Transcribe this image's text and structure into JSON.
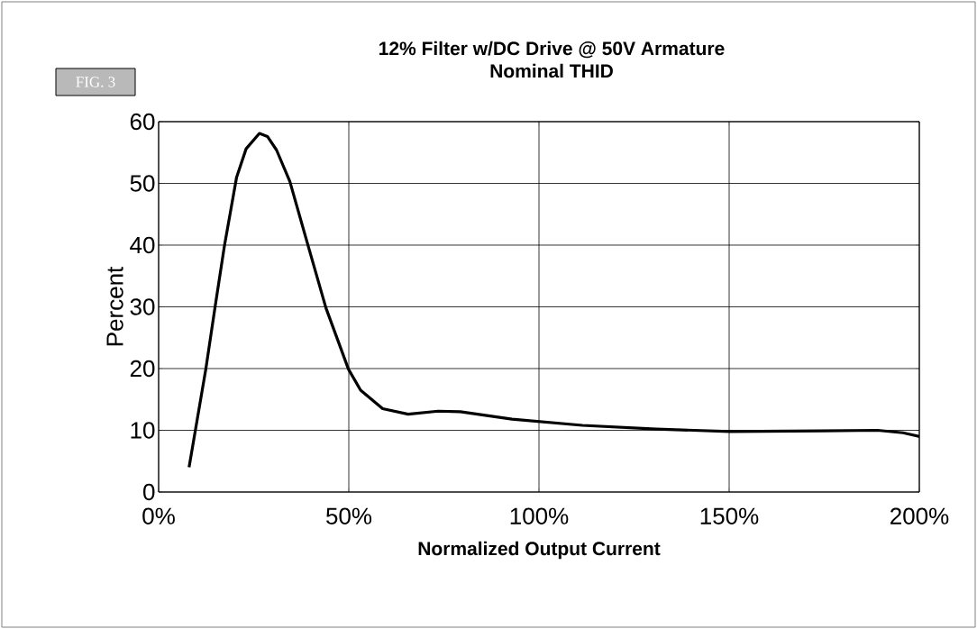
{
  "chart_data": {
    "type": "line",
    "title": "12% Filter w/DC Drive @ 50V Armature",
    "subtitle": "Nominal THID",
    "xlabel": "Normalized Output Current",
    "ylabel": "Percent",
    "annotations": [
      "FIG. 3"
    ],
    "series": [
      {
        "color": "#000000",
        "x": [
          8,
          12.4,
          14.8,
          17.3,
          20.5,
          23,
          26.5,
          28.6,
          31,
          34.5,
          39.3,
          44,
          49.9,
          53.1,
          58.9,
          65.6,
          73.5,
          79.3,
          92.9,
          111.4,
          130.8,
          150.2,
          174.4,
          189,
          195.7,
          200
        ],
        "values": [
          4,
          19.9,
          29.8,
          39.9,
          51,
          55.6,
          58.1,
          57.6,
          55.4,
          50.3,
          39.9,
          29.8,
          19.9,
          16.5,
          13.5,
          12.6,
          13.1,
          13,
          11.8,
          10.8,
          10.2,
          9.8,
          9.9,
          10,
          9.6,
          9
        ]
      }
    ],
    "xlim": [
      0,
      200
    ],
    "ylim": [
      0,
      60
    ],
    "xticks": [
      {
        "value": 0,
        "label": "0%"
      },
      {
        "value": 50,
        "label": "50%"
      },
      {
        "value": 100,
        "label": "100%"
      },
      {
        "value": 150,
        "label": "150%"
      },
      {
        "value": 200,
        "label": "200%"
      }
    ],
    "yticks": [
      0,
      10,
      20,
      30,
      40,
      50,
      60
    ],
    "grid": true,
    "marker": "none",
    "line_style": "solid"
  }
}
